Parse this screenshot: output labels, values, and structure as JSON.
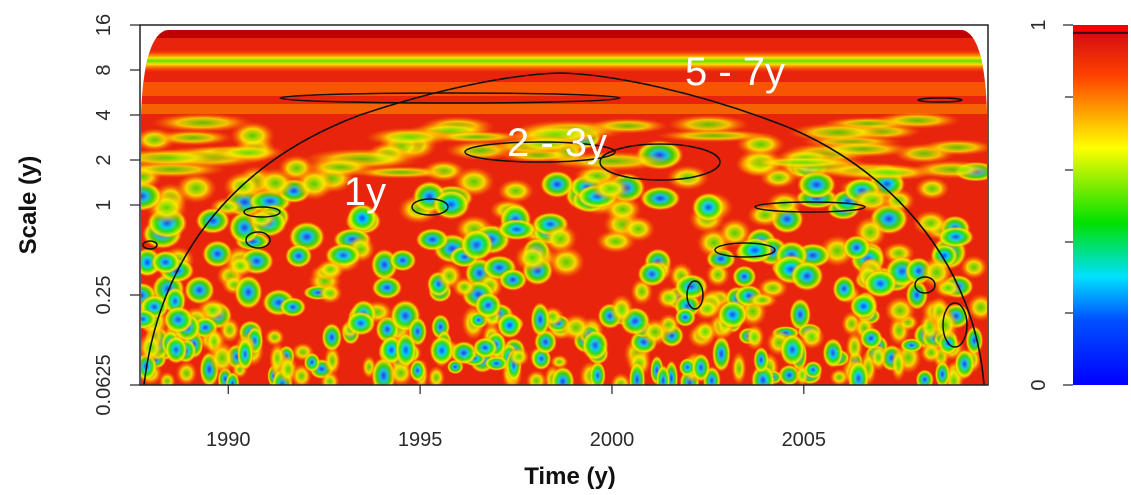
{
  "chart_data": {
    "type": "wavelet-coherence",
    "xlabel": "Time (y)",
    "ylabel": "Scale (y)",
    "xlim": [
      1987.7,
      2009.8
    ],
    "xticks": [
      1990,
      1995,
      2000,
      2005
    ],
    "ylim": [
      0.0625,
      16
    ],
    "yticks": [
      0.0625,
      0.25,
      1,
      2,
      4,
      8,
      16
    ],
    "yscale": "log2",
    "colorbar": {
      "lim": [
        0,
        1
      ],
      "ticks": [
        0,
        1
      ]
    },
    "annotations": [
      "1y",
      "2 - 3y",
      "5 - 7y"
    ]
  }
}
